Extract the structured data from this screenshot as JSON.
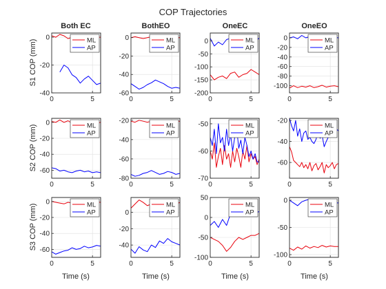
{
  "chart_data": {
    "type": "line",
    "title": "COP Trajectories",
    "column_titles": [
      "Both EC",
      "BothEO",
      "OneEC",
      "OneEO"
    ],
    "row_labels": [
      "S1 COP (mm)",
      "S2 COP (mm)",
      "S3 COP (mm)"
    ],
    "xlabel": "Time (s)",
    "xlim": [
      0,
      6
    ],
    "xticks": [
      0,
      5
    ],
    "legend": [
      "ML",
      "AP"
    ],
    "legend_position": "top-right",
    "grid": true,
    "colors": {
      "ML": "#e8000b",
      "AP": "#0000ff",
      "axis": "#262626",
      "grid": "#dfdfdf"
    },
    "panels": [
      {
        "ylim": [
          -40,
          3
        ],
        "yticks": [
          -40,
          -20,
          0
        ],
        "series": [
          {
            "name": "ML",
            "x": [
              0,
              0.5,
              1,
              1.5,
              2,
              2.5,
              3,
              3.5,
              4,
              4.5,
              5,
              5.5,
              6
            ],
            "y": [
              1,
              0,
              2,
              1,
              -1,
              0,
              1,
              0,
              1,
              0,
              1,
              0,
              0
            ]
          },
          {
            "name": "AP",
            "x": [
              1,
              1.5,
              2,
              2.5,
              3,
              3.5,
              4,
              4.5,
              5,
              5.5,
              6
            ],
            "y": [
              -25,
              -20,
              -22,
              -27,
              -29,
              -33,
              -30,
              -28,
              -31,
              -34,
              -33
            ]
          }
        ]
      },
      {
        "ylim": [
          -60,
          5
        ],
        "yticks": [
          -60,
          -40,
          -20,
          0
        ],
        "series": [
          {
            "name": "ML",
            "x": [
              0,
              0.5,
              1,
              1.5,
              2,
              2.5,
              3,
              3.5,
              4,
              4.5,
              5,
              5.5,
              6
            ],
            "y": [
              0,
              1,
              0,
              -1,
              0,
              1,
              0,
              -1,
              0,
              1,
              0,
              0,
              0
            ]
          },
          {
            "name": "AP",
            "x": [
              0,
              0.5,
              1,
              1.5,
              2,
              2.5,
              3,
              3.5,
              4,
              4.5,
              5,
              5.5,
              6
            ],
            "y": [
              -50,
              -53,
              -56,
              -54,
              -51,
              -49,
              -46,
              -48,
              -50,
              -53,
              -55,
              -54,
              -55
            ]
          }
        ]
      },
      {
        "ylim": [
          -200,
          30
        ],
        "yticks": [
          -200,
          -150,
          -100,
          -50,
          0
        ],
        "series": [
          {
            "name": "ML",
            "x": [
              0,
              0.5,
              1,
              1.5,
              2,
              2.5,
              3,
              3.5,
              4,
              4.5,
              5,
              5.5,
              6
            ],
            "y": [
              -130,
              -150,
              -140,
              -135,
              -145,
              -125,
              -120,
              -140,
              -130,
              -125,
              -110,
              -120,
              -130
            ]
          },
          {
            "name": "AP",
            "x": [
              0,
              0.5,
              1,
              1.5,
              2,
              2.5,
              3,
              3.5,
              4,
              4.5,
              5,
              5.5,
              6
            ],
            "y": [
              10,
              -20,
              -5,
              -15,
              5,
              10,
              20,
              10,
              15,
              5,
              10,
              0,
              10
            ]
          }
        ]
      },
      {
        "ylim": [
          -115,
          10
        ],
        "yticks": [
          -100,
          -80,
          -60,
          -40,
          -20,
          0
        ],
        "series": [
          {
            "name": "ML",
            "x": [
              0,
              0.5,
              1,
              1.5,
              2,
              2.5,
              3,
              3.5,
              4,
              4.5,
              5,
              5.5,
              6
            ],
            "y": [
              -105,
              -100,
              -104,
              -101,
              -103,
              -100,
              -104,
              -102,
              -99,
              -103,
              -101,
              -100,
              -102
            ]
          },
          {
            "name": "AP",
            "x": [
              0,
              0.5,
              1,
              1.5,
              2,
              2.5,
              3,
              3.5,
              4,
              4.5,
              5,
              5.5,
              6
            ],
            "y": [
              0,
              2,
              -2,
              5,
              0,
              3,
              -1,
              4,
              0,
              2,
              -2,
              1,
              0
            ]
          }
        ]
      },
      {
        "ylim": [
          -70,
          5
        ],
        "yticks": [
          -60,
          -40,
          -20,
          0
        ],
        "series": [
          {
            "name": "ML",
            "x": [
              0,
              0.5,
              1,
              1.5,
              2,
              2.5,
              3,
              3.5,
              4,
              4.5,
              5,
              5.5,
              6
            ],
            "y": [
              1,
              0,
              3,
              0,
              2,
              -1,
              1,
              0,
              2,
              0,
              1,
              -1,
              0
            ]
          },
          {
            "name": "AP",
            "x": [
              0,
              0.5,
              1,
              1.5,
              2,
              2.5,
              3,
              3.5,
              4,
              4.5,
              5,
              5.5,
              6
            ],
            "y": [
              -57,
              -58,
              -61,
              -60,
              -62,
              -63,
              -61,
              -60,
              -62,
              -61,
              -63,
              -62,
              -63
            ]
          }
        ]
      },
      {
        "ylim": [
          -80,
          -18
        ],
        "yticks": [
          -80,
          -60,
          -40,
          -20
        ],
        "series": [
          {
            "name": "ML",
            "x": [
              0,
              0.5,
              1,
              1.5,
              2,
              2.5,
              3,
              3.5,
              4,
              4.5,
              5,
              5.5,
              6
            ],
            "y": [
              -21,
              -22,
              -20,
              -21,
              -22,
              -21,
              -20,
              -22,
              -21,
              -22,
              -21,
              -21,
              -21
            ]
          },
          {
            "name": "AP",
            "x": [
              0,
              0.5,
              1,
              1.5,
              2,
              2.5,
              3,
              3.5,
              4,
              4.5,
              5,
              5.5,
              6
            ],
            "y": [
              -76,
              -78,
              -77,
              -75,
              -74,
              -72,
              -74,
              -76,
              -75,
              -73,
              -74,
              -76,
              -75
            ]
          }
        ]
      },
      {
        "ylim": [
          -70,
          -48
        ],
        "yticks": [
          -70,
          -60,
          -50
        ],
        "series": [
          {
            "name": "ML",
            "x": [
              0,
              0.25,
              0.5,
              0.75,
              1,
              1.25,
              1.5,
              1.75,
              2,
              2.25,
              2.5,
              2.75,
              3,
              3.25,
              3.5,
              3.75,
              4,
              4.25,
              4.5,
              4.75,
              5,
              5.25,
              5.5,
              5.75,
              6
            ],
            "y": [
              -60,
              -63,
              -57,
              -66,
              -62,
              -59,
              -65,
              -58,
              -63,
              -61,
              -66,
              -60,
              -64,
              -59,
              -62,
              -66,
              -60,
              -63,
              -58,
              -64,
              -61,
              -63,
              -62,
              -65,
              -63
            ]
          },
          {
            "name": "AP",
            "x": [
              0,
              0.25,
              0.5,
              0.75,
              1,
              1.25,
              1.5,
              1.75,
              2,
              2.25,
              2.5,
              2.75,
              3,
              3.25,
              3.5,
              3.75,
              4,
              4.25,
              4.5,
              4.75,
              5,
              5.25,
              5.5,
              5.75,
              6
            ],
            "y": [
              -55,
              -58,
              -52,
              -61,
              -50,
              -57,
              -55,
              -60,
              -52,
              -58,
              -54,
              -60,
              -55,
              -52,
              -59,
              -56,
              -61,
              -55,
              -58,
              -62,
              -60,
              -63,
              -61,
              -64,
              -64
            ]
          }
        ]
      },
      {
        "ylim": [
          -75,
          -18
        ],
        "yticks": [
          -60,
          -40,
          -20
        ],
        "series": [
          {
            "name": "ML",
            "x": [
              0,
              0.25,
              0.5,
              0.75,
              1,
              1.25,
              1.5,
              1.75,
              2,
              2.25,
              2.5,
              2.75,
              3,
              3.25,
              3.5,
              3.75,
              4,
              4.25,
              4.5,
              4.75,
              5,
              5.25,
              5.5,
              5.75,
              6
            ],
            "y": [
              -45,
              -50,
              -58,
              -60,
              -62,
              -64,
              -60,
              -65,
              -62,
              -66,
              -60,
              -68,
              -63,
              -61,
              -67,
              -64,
              -60,
              -70,
              -62,
              -65,
              -63,
              -60,
              -66,
              -62,
              -61
            ]
          },
          {
            "name": "AP",
            "x": [
              0,
              0.25,
              0.5,
              0.75,
              1,
              1.25,
              1.5,
              1.75,
              2,
              2.25,
              2.5,
              2.75,
              3,
              3.25,
              3.5,
              3.75,
              4,
              4.25,
              4.5,
              4.75,
              5,
              5.25,
              5.5,
              5.75,
              6
            ],
            "y": [
              -18,
              -25,
              -30,
              -20,
              -35,
              -28,
              -40,
              -32,
              -30,
              -38,
              -36,
              -40,
              -42,
              -38,
              -30,
              -37,
              -34,
              -45,
              -40,
              -36,
              -30,
              -35,
              -32,
              -28,
              -30
            ]
          }
        ]
      },
      {
        "ylim": [
          -70,
          5
        ],
        "yticks": [
          -60,
          -40,
          -20,
          0
        ],
        "series": [
          {
            "name": "ML",
            "x": [
              0,
              0.5,
              1,
              1.5,
              2,
              2.5,
              3,
              3.5,
              4,
              4.5,
              5,
              5.5,
              6
            ],
            "y": [
              0,
              -1,
              -2,
              -3,
              -1,
              -2,
              0,
              -2,
              -1,
              -1,
              -2,
              -1,
              -1
            ]
          },
          {
            "name": "AP",
            "x": [
              0,
              0.5,
              1,
              1.5,
              2,
              2.5,
              3,
              3.5,
              4,
              4.5,
              5,
              5.5,
              6
            ],
            "y": [
              -63,
              -66,
              -64,
              -62,
              -61,
              -58,
              -60,
              -59,
              -56,
              -58,
              -57,
              -55,
              -56
            ]
          }
        ]
      },
      {
        "ylim": [
          -55,
          18
        ],
        "yticks": [
          -40,
          -20,
          0
        ],
        "series": [
          {
            "name": "ML",
            "x": [
              0,
              0.5,
              1,
              1.5,
              2,
              2.5,
              3,
              3.5,
              4,
              4.5,
              5,
              5.5,
              6
            ],
            "y": [
              5,
              10,
              15,
              12,
              8,
              10,
              12,
              11,
              10,
              14,
              12,
              10,
              12
            ]
          },
          {
            "name": "AP",
            "x": [
              0,
              0.5,
              1,
              1.5,
              2,
              2.5,
              3,
              3.5,
              4,
              4.5,
              5,
              5.5,
              6
            ],
            "y": [
              -45,
              -50,
              -42,
              -46,
              -48,
              -40,
              -43,
              -35,
              -38,
              -32,
              -36,
              -38,
              -40
            ]
          }
        ]
      },
      {
        "ylim": [
          -100,
          50
        ],
        "yticks": [
          -100,
          -50,
          0,
          50
        ],
        "series": [
          {
            "name": "ML",
            "x": [
              0,
              0.5,
              1,
              1.5,
              2,
              2.5,
              3,
              3.5,
              4,
              4.5,
              5,
              5.5,
              6
            ],
            "y": [
              -50,
              -55,
              -60,
              -70,
              -85,
              -75,
              -60,
              -50,
              -55,
              -50,
              -45,
              -45,
              -40
            ]
          },
          {
            "name": "AP",
            "x": [
              0,
              0.5,
              1,
              1.5,
              2,
              2.5,
              3,
              3.5,
              4,
              4.5,
              5,
              5.5,
              6
            ],
            "y": [
              -20,
              -10,
              -25,
              -5,
              -20,
              10,
              5,
              20,
              10,
              15,
              5,
              10,
              15
            ]
          }
        ]
      },
      {
        "ylim": [
          -105,
          5
        ],
        "yticks": [
          -100,
          -50,
          0
        ],
        "series": [
          {
            "name": "ML",
            "x": [
              0,
              0.5,
              1,
              1.5,
              2,
              2.5,
              3,
              3.5,
              4,
              4.5,
              5,
              5.5,
              6
            ],
            "y": [
              -88,
              -92,
              -86,
              -90,
              -84,
              -88,
              -85,
              -87,
              -83,
              -86,
              -84,
              -85,
              -85
            ]
          },
          {
            "name": "AP",
            "x": [
              0,
              0.5,
              1,
              1.5,
              2,
              2.5,
              3,
              3.5,
              4,
              4.5,
              5,
              5.5,
              6
            ],
            "y": [
              0,
              -5,
              -10,
              -3,
              0,
              2,
              -5,
              0,
              -8,
              -5,
              -10,
              -5,
              -5
            ]
          }
        ]
      }
    ]
  }
}
